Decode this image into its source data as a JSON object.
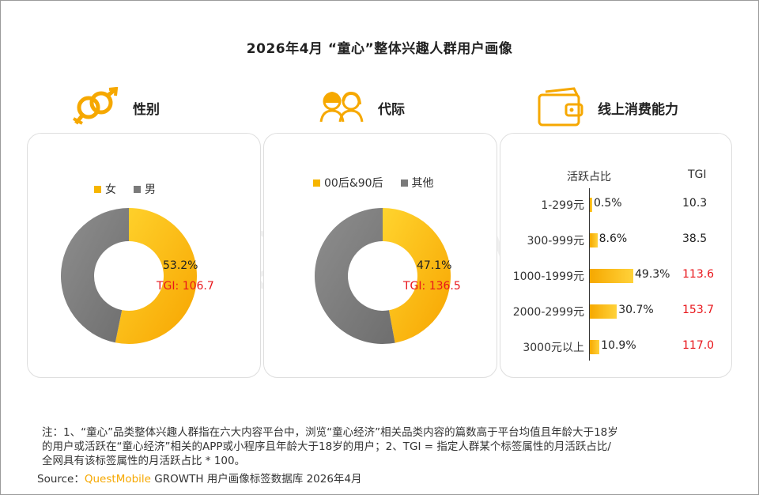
{
  "title": "2026年4月 “童心”整体兴趣人群用户画像",
  "watermark": "QUESTMOBILE",
  "colors": {
    "accent": "#f6a800",
    "gray": "#7a7a7a",
    "tgi_red": "#e8161b"
  },
  "sections": {
    "gender": {
      "label": "性别",
      "icon": "gender-symbols-icon",
      "legend": [
        "女",
        "男"
      ],
      "highlight_pct": "53.2%",
      "tgi": "TGI: 106.7"
    },
    "generation": {
      "label": "代际",
      "icon": "people-icon",
      "legend": [
        "00后&90后",
        "其他"
      ],
      "highlight_pct": "47.1%",
      "tgi": "TGI: 136.5"
    },
    "spending": {
      "label": "线上消费能力",
      "icon": "wallet-icon",
      "col_active": "活跃占比",
      "col_tgi": "TGI",
      "rows": [
        {
          "cat": "1-299元",
          "val": "0.5%",
          "tgi": "10.3",
          "tgi_color": "#222"
        },
        {
          "cat": "300-999元",
          "val": "8.6%",
          "tgi": "38.5",
          "tgi_color": "#222"
        },
        {
          "cat": "1000-1999元",
          "val": "49.3%",
          "tgi": "113.6",
          "tgi_color": "#e8161b"
        },
        {
          "cat": "2000-2999元",
          "val": "30.7%",
          "tgi": "153.7",
          "tgi_color": "#e8161b"
        },
        {
          "cat": "3000元以上",
          "val": "10.9%",
          "tgi": "117.0",
          "tgi_color": "#e8161b"
        }
      ]
    }
  },
  "chart_data": [
    {
      "type": "pie",
      "categories": [
        "女",
        "男"
      ],
      "values": [
        53.2,
        46.8
      ],
      "labels": [
        "53.2%",
        ""
      ],
      "annotations": [
        "TGI: 106.7"
      ]
    },
    {
      "type": "pie",
      "categories": [
        "00后&90后",
        "其他"
      ],
      "values": [
        47.1,
        52.9
      ],
      "labels": [
        "47.1%",
        ""
      ],
      "annotations": [
        "TGI: 136.5"
      ]
    },
    {
      "type": "bar",
      "orientation": "horizontal",
      "categories": [
        "1-299元",
        "300-999元",
        "1000-1999元",
        "2000-2999元",
        "3000元以上"
      ],
      "values": [
        0.5,
        8.6,
        49.3,
        30.7,
        10.9
      ],
      "tgi": [
        10.3,
        38.5,
        113.6,
        153.7,
        117.0
      ],
      "xlabel": "活跃占比",
      "ylabel": ""
    }
  ],
  "footnote": {
    "line1": "注：1、“童心”品类整体兴趣人群指在六大内容平台中，浏览“童心经济”相关品类内容的篇数高于平台均值且年龄大于18岁",
    "line2": "的用户或活跃在“童心经济”相关的APP或小程序且年龄大于18岁的用户；2、TGI = 指定人群某个标签属性的月活跃占比/",
    "line3": "全网具有该标签属性的月活跃占比 * 100。",
    "source_prefix": "Source：",
    "source_brand": "QuestMobile",
    "source_rest": " GROWTH 用户画像标签数据库 2026年4月"
  }
}
